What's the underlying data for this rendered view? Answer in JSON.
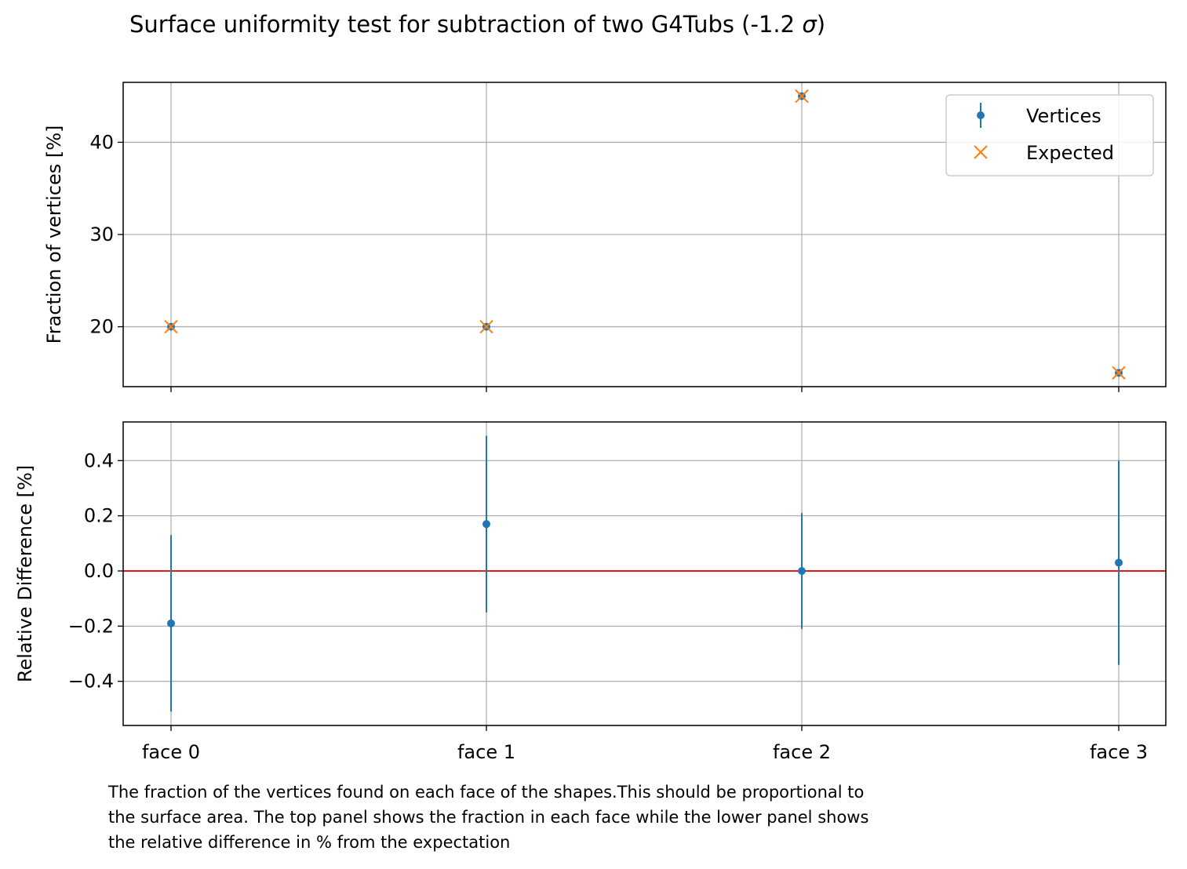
{
  "title": {
    "prefix": "Surface uniformity test for subtraction of two G4Tubs (-1.2 ",
    "sigma": "σ",
    "suffix": ")"
  },
  "caption": {
    "lines": [
      "The fraction of the vertices found on each face of the shapes.This should be proportional to",
      "the surface area. The top panel shows the fraction in each face while the lower panel shows",
      "the relative difference in % from the expectation"
    ]
  },
  "colors": {
    "vertices": "#1f77b4",
    "expected": "#ff7f0e",
    "reference_line": "#e31a1c",
    "grid": "#b0b0b0"
  },
  "chart_data": [
    {
      "type": "scatter",
      "panel": "top",
      "categories": [
        "face 0",
        "face 1",
        "face 2",
        "face 3"
      ],
      "ylabel": "Fraction of vertices [%]",
      "ylim": [
        13.5,
        46.5
      ],
      "yticks": [
        20,
        30,
        40
      ],
      "ytick_labels": [
        "20",
        "30",
        "40"
      ],
      "grid": true,
      "legend": "top-right",
      "series": [
        {
          "name": "Vertices",
          "marker": "point-errorbar",
          "values": [
            20.0,
            20.0,
            45.0,
            15.0
          ],
          "errors": [
            0.06,
            0.06,
            0.09,
            0.05
          ]
        },
        {
          "name": "Expected",
          "marker": "x",
          "values": [
            20.0,
            20.0,
            45.0,
            15.0
          ]
        }
      ]
    },
    {
      "type": "scatter",
      "panel": "bottom",
      "categories": [
        "face 0",
        "face 1",
        "face 2",
        "face 3"
      ],
      "ylabel": "Relative Difference [%]",
      "ylim": [
        -0.56,
        0.54
      ],
      "yticks": [
        -0.4,
        -0.2,
        0.0,
        0.2,
        0.4
      ],
      "ytick_labels": [
        "−0.4",
        "−0.2",
        "0.0",
        "0.2",
        "0.4"
      ],
      "grid": true,
      "reference_line": 0.0,
      "series": [
        {
          "marker": "point-errorbar",
          "values": [
            -0.19,
            0.17,
            0.0,
            0.03
          ],
          "errors": [
            0.32,
            0.32,
            0.21,
            0.37
          ]
        }
      ]
    }
  ]
}
